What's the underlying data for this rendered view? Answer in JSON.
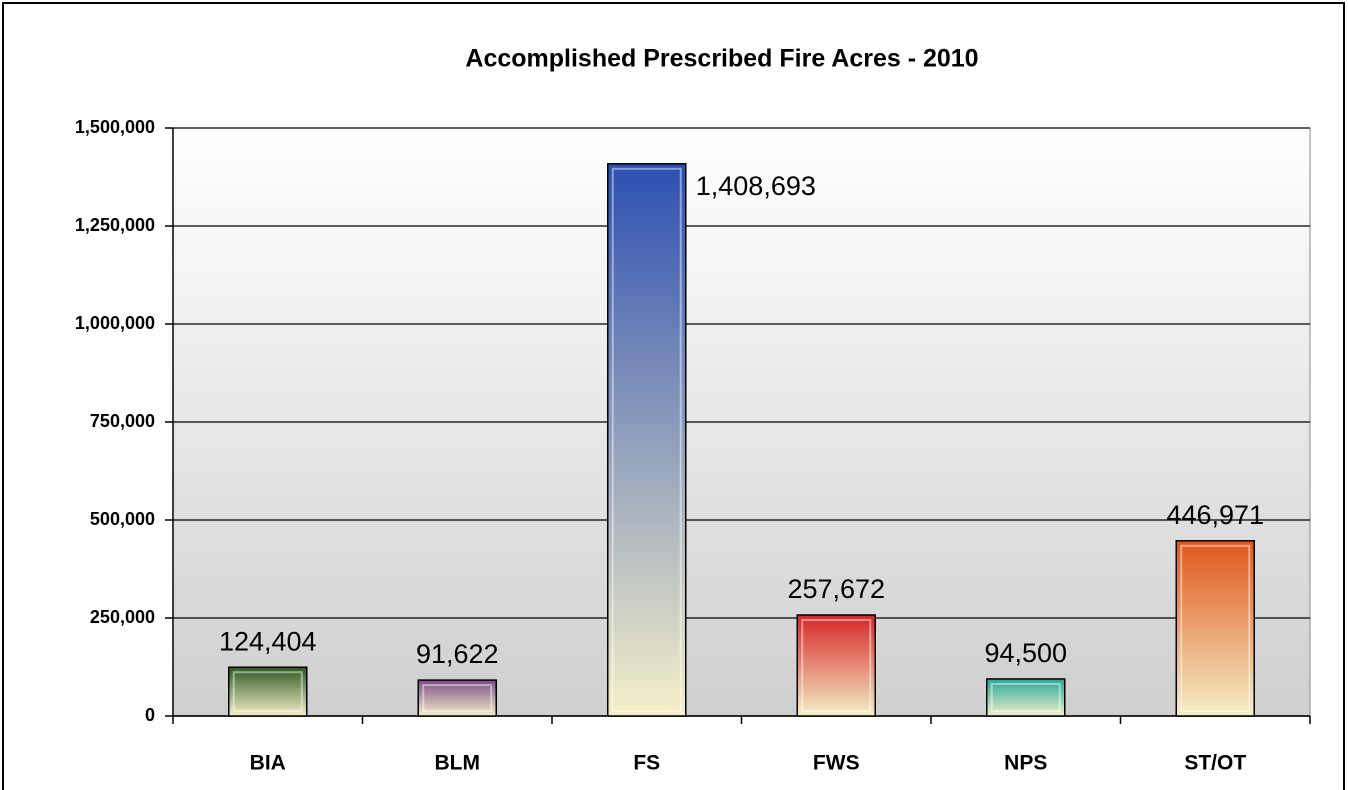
{
  "chart_data": {
    "type": "bar",
    "title": "Accomplished Prescribed Fire Acres - 2010",
    "categories": [
      "BIA",
      "BLM",
      "FS",
      "FWS",
      "NPS",
      "ST/OT"
    ],
    "values": [
      124404,
      91622,
      1408693,
      257672,
      94500,
      446971
    ],
    "value_labels": [
      "124,404",
      "91,622",
      "1,408,693",
      "257,672",
      "94,500",
      "446,971"
    ],
    "colors": [
      "#2f5a22",
      "#7a4e86",
      "#2c4fb0",
      "#d42626",
      "#26a898",
      "#e0561a"
    ],
    "ylim": [
      0,
      1500000
    ],
    "yticks": [
      0,
      {
        "value": 250000,
        "label": "250,000"
      },
      {
        "value": 500000,
        "label": "500,000"
      },
      {
        "value": 750000,
        "label": "750,000"
      },
      {
        "value": 1000000,
        "label": "1,000,000"
      },
      {
        "value": 1250000,
        "label": "1,250,000"
      },
      {
        "value": 1500000,
        "label": "1,500,000"
      }
    ],
    "grid": true
  }
}
